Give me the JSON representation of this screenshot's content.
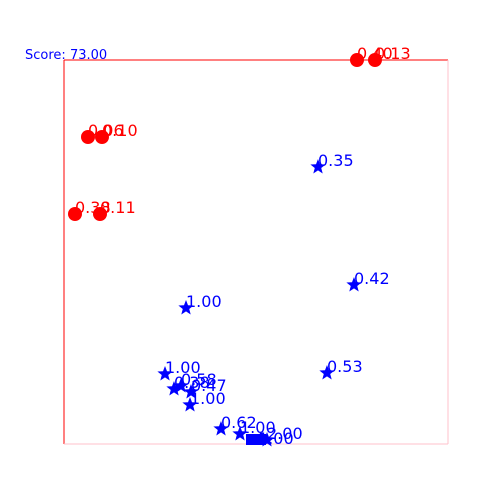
{
  "game": {
    "score_label": "Score:",
    "score_value": "73.00",
    "colors": {
      "frame": "#ff0000",
      "frame_faint": "#ffc0cb",
      "enemy": "#ff0000",
      "player": "#0000ff",
      "background": "#ffffff"
    },
    "enemies": [
      {
        "label": "0.40",
        "icon": "red-circle"
      },
      {
        "label": "0.13",
        "icon": "red-circle"
      },
      {
        "label": "0.06",
        "icon": "red-circle"
      },
      {
        "label": "0.10",
        "icon": "red-circle"
      },
      {
        "label": "0.38",
        "icon": "red-circle"
      },
      {
        "label": "0.11",
        "icon": "red-circle"
      }
    ],
    "stars": [
      {
        "label": "0.35",
        "icon": "blue-star"
      },
      {
        "label": "0.42",
        "icon": "blue-star"
      },
      {
        "label": "1.00",
        "icon": "blue-star"
      },
      {
        "label": "1.00",
        "icon": "blue-star"
      },
      {
        "label": "0.53",
        "icon": "blue-star"
      },
      {
        "label": "0.58",
        "icon": "blue-star"
      },
      {
        "label": "0.38",
        "icon": "blue-star"
      },
      {
        "label": "0.47",
        "icon": "blue-star"
      },
      {
        "label": "1.00",
        "icon": "blue-star"
      },
      {
        "label": "0.62",
        "icon": "blue-star"
      },
      {
        "label": "1.00",
        "icon": "blue-star"
      },
      {
        "label": "2.00",
        "icon": "blue-star"
      }
    ],
    "player": {
      "label": "1.00",
      "icon": "blue-square"
    }
  }
}
